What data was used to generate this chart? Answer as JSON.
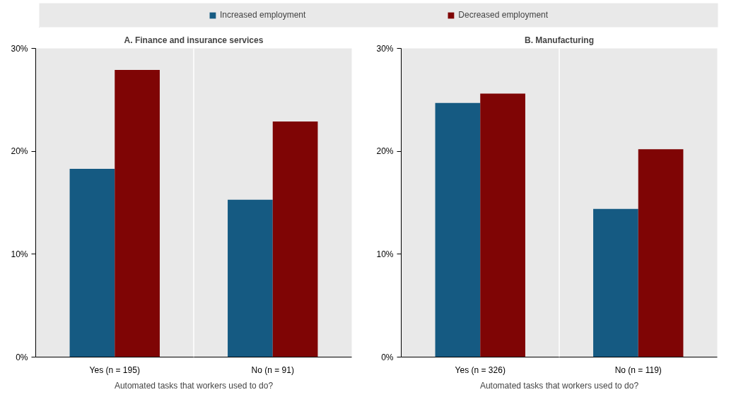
{
  "chart_data": [
    {
      "type": "bar",
      "title": "A. Finance and insurance services",
      "xlabel": "Automated tasks that workers used to do?",
      "categories": [
        "Yes (n = 195)",
        "No (n = 91)"
      ],
      "series": [
        {
          "name": "Increased employment",
          "color": "#155a82",
          "values": [
            18.3,
            15.3
          ]
        },
        {
          "name": "Decreased employment",
          "color": "#7f0505",
          "values": [
            27.9,
            22.9
          ]
        }
      ],
      "ylim": [
        0,
        30
      ],
      "yticks": [
        {
          "value": 0,
          "label": "0%"
        },
        {
          "value": 10,
          "label": "10%"
        },
        {
          "value": 20,
          "label": "20%"
        },
        {
          "value": 30,
          "label": "30%"
        }
      ],
      "legend": "top"
    },
    {
      "type": "bar",
      "title": "B. Manufacturing",
      "xlabel": "Automated tasks that workers used to do?",
      "categories": [
        "Yes (n = 326)",
        "No (n = 119)"
      ],
      "series": [
        {
          "color": "#155a82",
          "values": [
            24.7,
            14.4
          ]
        },
        {
          "color": "#7f0505",
          "values": [
            25.6,
            20.2
          ]
        }
      ],
      "ylim": [
        0,
        30
      ],
      "yticks": [
        {
          "value": 0,
          "label": "0%"
        },
        {
          "value": 10,
          "label": "10%"
        },
        {
          "value": 20,
          "label": "20%"
        },
        {
          "value": 30,
          "label": "30%"
        }
      ]
    }
  ]
}
